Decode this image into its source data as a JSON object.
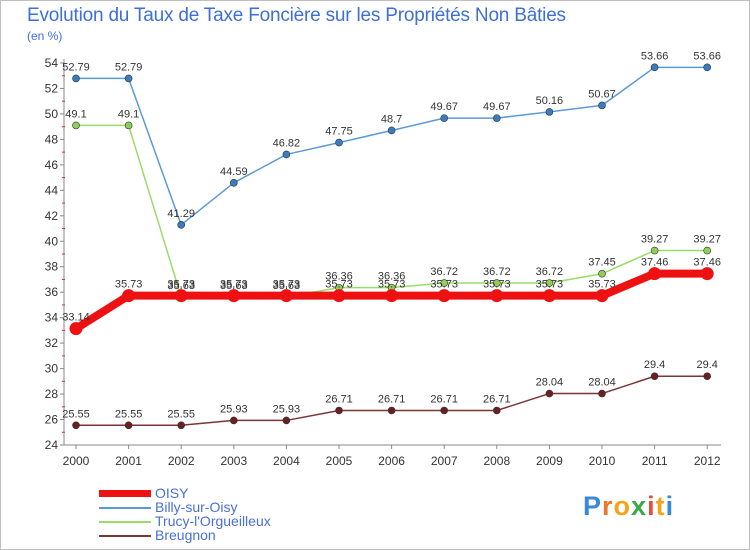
{
  "title": "Evolution du Taux de Taxe Foncière sur les Propriétés Non Bâties",
  "unit_label": "(en %)",
  "logo": {
    "chars": [
      "P",
      "r",
      "o",
      "x",
      "i",
      "t",
      "i"
    ],
    "colors": [
      "#3a88d8",
      "#e8782a",
      "#f2a41d",
      "#3aa845",
      "#e84b3c",
      "#f2a41d",
      "#3a88d8"
    ]
  },
  "chart_data": {
    "type": "line",
    "title": "Evolution du Taux de Taxe Foncière sur les Propriétés Non Bâties",
    "ylabel": "(en %)",
    "xlabel": "",
    "x": [
      "2000",
      "2001",
      "2002",
      "2003",
      "2004",
      "2005",
      "2006",
      "2007",
      "2008",
      "2009",
      "2010",
      "2011",
      "2012"
    ],
    "ylim": [
      24,
      54
    ],
    "yticks": [
      24,
      26,
      28,
      30,
      32,
      34,
      36,
      38,
      40,
      42,
      44,
      46,
      48,
      50,
      52,
      54
    ],
    "grid": false,
    "legend_position": "bottom-left",
    "series": [
      {
        "name": "OISY",
        "color": "#ee1111",
        "values": [
          33.14,
          35.73,
          35.73,
          35.73,
          35.73,
          35.73,
          35.73,
          35.73,
          35.73,
          35.73,
          35.73,
          37.46,
          37.46
        ],
        "labels": [
          "33.14",
          "35.73",
          "35.73",
          "35.73",
          "35.73",
          "35.73",
          "35.73",
          "35.73",
          "35.73",
          "35.73",
          "35.73",
          "37.46",
          "37.46"
        ]
      },
      {
        "name": "Billy-sur-Oisy",
        "color": "#5b9bd5",
        "values": [
          52.79,
          52.79,
          41.29,
          44.59,
          46.82,
          47.75,
          48.7,
          49.67,
          49.67,
          50.16,
          50.67,
          53.66,
          53.66
        ],
        "labels": [
          "52.79",
          "52.79",
          "41.29",
          "44.59",
          "46.82",
          "47.75",
          "48.7",
          "49.67",
          "49.67",
          "50.16",
          "50.67",
          "53.66",
          "53.66"
        ]
      },
      {
        "name": "Trucy-l'Orgueilleux",
        "color": "#99dd66",
        "values": [
          49.1,
          49.1,
          35.63,
          35.63,
          35.63,
          36.36,
          36.36,
          36.72,
          36.72,
          36.72,
          37.45,
          39.27,
          39.27
        ],
        "labels": [
          "49.1",
          "49.1",
          "35.63",
          "35.63",
          "35.63",
          "36.36",
          "36.36",
          "36.72",
          "36.72",
          "36.72",
          "37.45",
          "39.27",
          "39.27"
        ]
      },
      {
        "name": "Breugnon",
        "color": "#7a3535",
        "values": [
          25.55,
          25.55,
          25.55,
          25.93,
          25.93,
          26.71,
          26.71,
          26.71,
          26.71,
          28.04,
          28.04,
          29.4,
          29.4
        ],
        "labels": [
          "25.55",
          "25.55",
          "25.55",
          "25.93",
          "25.93",
          "26.71",
          "26.71",
          "26.71",
          "26.71",
          "28.04",
          "28.04",
          "29.4",
          "29.4"
        ]
      }
    ]
  }
}
